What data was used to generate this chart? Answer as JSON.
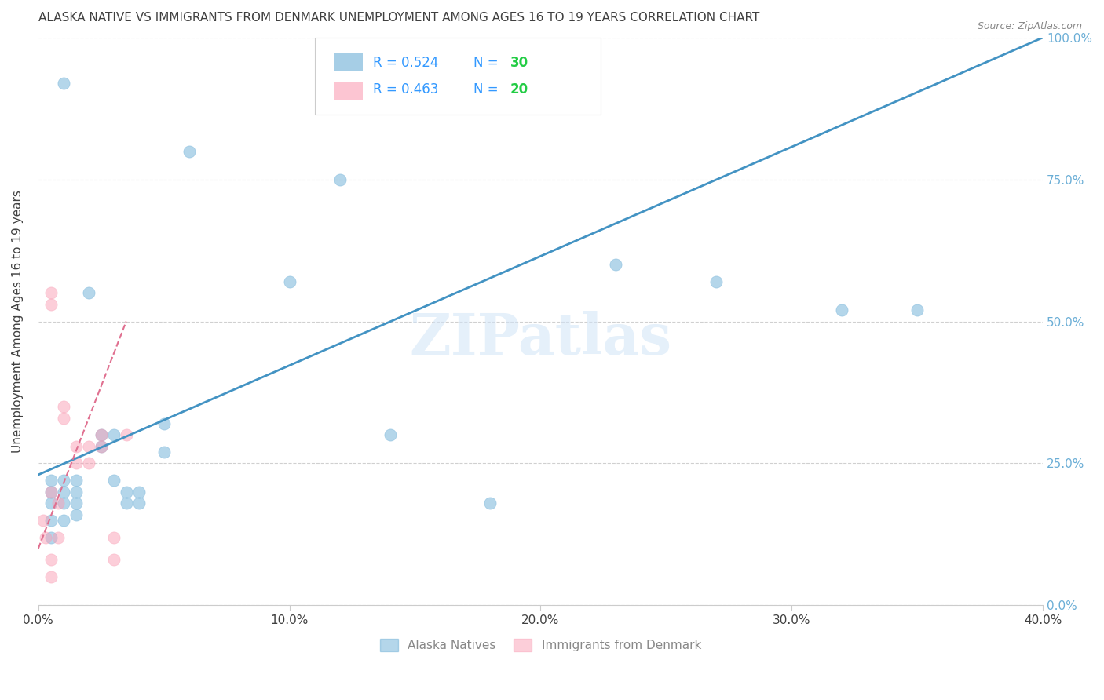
{
  "title": "ALASKA NATIVE VS IMMIGRANTS FROM DENMARK UNEMPLOYMENT AMONG AGES 16 TO 19 YEARS CORRELATION CHART",
  "source": "Source: ZipAtlas.com",
  "ylabel": "Unemployment Among Ages 16 to 19 years",
  "xlabel_ticks": [
    "0.0%",
    "10.0%",
    "20.0%",
    "30.0%",
    "40.0%"
  ],
  "ylabel_ticks": [
    "0.0%",
    "25.0%",
    "50.0%",
    "75.0%",
    "100.0%"
  ],
  "xlim": [
    0.0,
    0.4
  ],
  "ylim": [
    0.0,
    1.0
  ],
  "legend_bottom": [
    "Alaska Natives",
    "Immigrants from Denmark"
  ],
  "blue_scatter_x": [
    0.005,
    0.005,
    0.005,
    0.005,
    0.005,
    0.01,
    0.01,
    0.01,
    0.01,
    0.015,
    0.015,
    0.015,
    0.015,
    0.02,
    0.025,
    0.025,
    0.03,
    0.03,
    0.035,
    0.035,
    0.04,
    0.04,
    0.05,
    0.05,
    0.06,
    0.1,
    0.12,
    0.14,
    0.18,
    0.32,
    0.23,
    0.27,
    0.01,
    0.35
  ],
  "blue_scatter_y": [
    0.2,
    0.18,
    0.22,
    0.15,
    0.12,
    0.2,
    0.22,
    0.18,
    0.15,
    0.2,
    0.18,
    0.16,
    0.22,
    0.55,
    0.28,
    0.3,
    0.22,
    0.3,
    0.18,
    0.2,
    0.18,
    0.2,
    0.32,
    0.27,
    0.8,
    0.57,
    0.75,
    0.3,
    0.18,
    0.52,
    0.6,
    0.57,
    0.92,
    0.52
  ],
  "pink_scatter_x": [
    0.002,
    0.003,
    0.005,
    0.005,
    0.005,
    0.008,
    0.008,
    0.01,
    0.01,
    0.015,
    0.015,
    0.02,
    0.02,
    0.025,
    0.025,
    0.03,
    0.03,
    0.035,
    0.005,
    0.005
  ],
  "pink_scatter_y": [
    0.15,
    0.12,
    0.55,
    0.53,
    0.2,
    0.18,
    0.12,
    0.35,
    0.33,
    0.28,
    0.25,
    0.28,
    0.25,
    0.3,
    0.28,
    0.12,
    0.08,
    0.3,
    0.08,
    0.05
  ],
  "blue_line_x": [
    0.0,
    0.4
  ],
  "blue_line_y": [
    0.23,
    1.0
  ],
  "pink_line_x": [
    0.0,
    0.035
  ],
  "pink_line_y": [
    0.1,
    0.5
  ],
  "watermark": "ZIPatlas",
  "bg_color": "#ffffff",
  "blue_color": "#6baed6",
  "pink_color": "#fa9fb5",
  "trend_blue": "#4393c3",
  "trend_pink": "#e07090",
  "grid_color": "#d0d0d0",
  "title_color": "#404040",
  "axis_label_color": "#404040",
  "tick_label_color_right": "#6baed6",
  "tick_label_color_bottom": "#404040",
  "marker_size": 120,
  "marker_alpha": 0.5,
  "marker_lw": 0.5
}
